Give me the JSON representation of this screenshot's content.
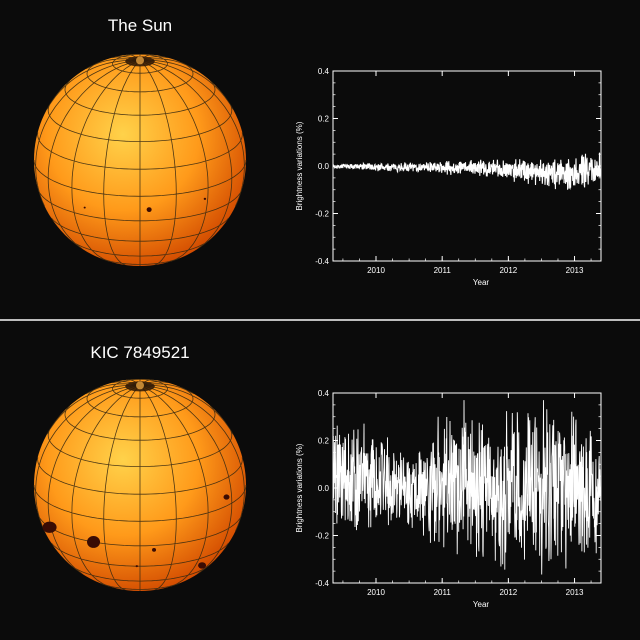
{
  "panels": [
    {
      "title": "The Sun",
      "spots": [
        {
          "lat": -8,
          "lon": 5,
          "size": 2.5
        },
        {
          "lat": -6,
          "lon": 38,
          "size": 1.2
        },
        {
          "lat": -10,
          "lon": -32,
          "size": 1.0
        }
      ]
    },
    {
      "title": "KIC 7849521",
      "spots": [
        {
          "lat": -15,
          "lon": -62,
          "size": 7
        },
        {
          "lat": -15,
          "lon": -27,
          "size": 6.5
        },
        {
          "lat": 5,
          "lon": 55,
          "size": 3
        },
        {
          "lat": -18,
          "lon": 8,
          "size": 2
        },
        {
          "lat": -38,
          "lon": 48,
          "size": 4
        },
        {
          "lat": -30,
          "lon": -2,
          "size": 1.2
        }
      ]
    }
  ],
  "colors": {
    "sphere_center": "#ffd24a",
    "sphere_mid": "#ff9a1a",
    "sphere_edge": "#d24a00",
    "grid": "#3a2a12",
    "spot": "#3a0c04",
    "line": "#ffffff"
  },
  "chart_data": [
    {
      "type": "line",
      "xlabel": "Year",
      "ylabel": "Brightness variations (%)",
      "xlim": [
        2009.35,
        2013.4
      ],
      "ylim": [
        -0.4,
        0.4
      ],
      "xticks": [
        "2010",
        "2011",
        "2012",
        "2013"
      ],
      "yticks": [
        "0.4",
        "0.2",
        "0.0",
        "-0.2",
        "-0.4"
      ],
      "series": [
        {
          "x": [
            2009.35,
            2009.6,
            2009.85,
            2010.1,
            2010.35,
            2010.6,
            2010.85,
            2011.1,
            2011.35,
            2011.6,
            2011.85,
            2012.1,
            2012.35,
            2012.6,
            2012.85,
            2013.1,
            2013.4
          ],
          "envelope_max": [
            0.008,
            0.012,
            0.015,
            0.015,
            0.015,
            0.018,
            0.02,
            0.025,
            0.028,
            0.03,
            0.035,
            0.04,
            0.045,
            0.05,
            0.055,
            0.06,
            0.07
          ],
          "envelope_min": [
            -0.012,
            -0.015,
            -0.02,
            -0.025,
            -0.025,
            -0.028,
            -0.03,
            -0.04,
            -0.04,
            -0.045,
            -0.06,
            -0.07,
            -0.08,
            -0.1,
            -0.12,
            -0.1,
            -0.09
          ]
        }
      ]
    },
    {
      "type": "line",
      "xlabel": "Year",
      "ylabel": "Brightness variations (%)",
      "xlim": [
        2009.35,
        2013.4
      ],
      "ylim": [
        -0.4,
        0.4
      ],
      "xticks": [
        "2010",
        "2011",
        "2012",
        "2013"
      ],
      "yticks": [
        "0.4",
        "0.2",
        "0.0",
        "-0.2",
        "-0.4"
      ],
      "series": [
        {
          "x": [
            2009.35,
            2009.6,
            2009.85,
            2010.1,
            2010.35,
            2010.6,
            2010.85,
            2011.1,
            2011.35,
            2011.6,
            2011.85,
            2012.1,
            2012.35,
            2012.6,
            2012.85,
            2013.1,
            2013.4
          ],
          "envelope_max": [
            0.3,
            0.32,
            0.28,
            0.25,
            0.22,
            0.2,
            0.3,
            0.35,
            0.38,
            0.38,
            0.36,
            0.35,
            0.38,
            0.4,
            0.38,
            0.35,
            0.3
          ],
          "envelope_min": [
            -0.2,
            -0.22,
            -0.25,
            -0.25,
            -0.2,
            -0.2,
            -0.28,
            -0.32,
            -0.38,
            -0.4,
            -0.38,
            -0.32,
            -0.35,
            -0.38,
            -0.4,
            -0.35,
            -0.3
          ]
        }
      ]
    }
  ]
}
